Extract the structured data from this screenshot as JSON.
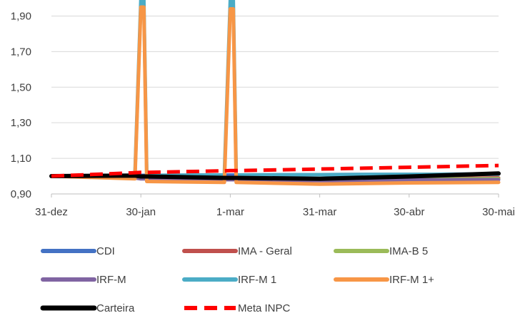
{
  "chart_data": {
    "type": "line",
    "title": "",
    "xlabel": "",
    "ylabel": "",
    "x_ticks": [
      "31-dez",
      "30-jan",
      "1-mar",
      "31-mar",
      "30-abr",
      "30-mai"
    ],
    "y_ticks": [
      "0,90",
      "1,10",
      "1,30",
      "1,50",
      "1,70",
      "1,90"
    ],
    "ylim": [
      0.9,
      1.99
    ],
    "grid": "horizontal",
    "legend_position": "bottom",
    "x_points": [
      0,
      28,
      30,
      31,
      32,
      58,
      60,
      61,
      62,
      90,
      120,
      150
    ],
    "series": [
      {
        "name": "CDI",
        "color": "#4472C4",
        "width": 5,
        "dash": "",
        "values": [
          1.0,
          1.004,
          1.004,
          1.004,
          1.004,
          1.006,
          1.006,
          1.006,
          1.006,
          1.008,
          1.01,
          1.012
        ]
      },
      {
        "name": "IMA - Geral",
        "color": "#C0504D",
        "width": 5,
        "dash": "",
        "values": [
          1.0,
          0.995,
          0.99,
          0.99,
          0.99,
          0.985,
          0.985,
          0.985,
          0.985,
          0.982,
          0.985,
          0.99
        ]
      },
      {
        "name": "IMA-B 5",
        "color": "#9BBB59",
        "width": 5,
        "dash": "",
        "values": [
          1.0,
          0.993,
          0.99,
          0.99,
          0.99,
          0.984,
          0.984,
          0.984,
          0.984,
          0.978,
          0.982,
          0.986
        ]
      },
      {
        "name": "IRF-M",
        "color": "#8064A2",
        "width": 5,
        "dash": "",
        "values": [
          1.0,
          0.99,
          0.985,
          0.985,
          0.985,
          0.98,
          0.98,
          0.98,
          0.98,
          0.975,
          0.978,
          0.98
        ]
      },
      {
        "name": "IRF-M 1",
        "color": "#4BACC6",
        "width": 5,
        "dash": "",
        "values": [
          1.0,
          1.004,
          1.99,
          1.99,
          1.004,
          1.006,
          1.99,
          1.99,
          1.006,
          1.008,
          1.01,
          1.012
        ]
      },
      {
        "name": "IRF-M 1+",
        "color": "#F79646",
        "width": 5,
        "dash": "",
        "values": [
          1.0,
          0.985,
          1.95,
          1.95,
          0.97,
          0.965,
          1.94,
          1.94,
          0.965,
          0.955,
          0.962,
          0.965
        ]
      },
      {
        "name": "Carteira",
        "color": "#000000",
        "width": 6,
        "dash": "",
        "values": [
          1.0,
          1.003,
          0.998,
          0.998,
          0.998,
          0.99,
          0.99,
          0.99,
          0.99,
          0.985,
          0.998,
          1.015
        ]
      },
      {
        "name": "Meta INPC",
        "color": "#FF0000",
        "width": 5,
        "dash": "18 9",
        "values": [
          1.0,
          1.019,
          1.021,
          1.021,
          1.021,
          1.03,
          1.031,
          1.031,
          1.031,
          1.04,
          1.05,
          1.06
        ]
      }
    ]
  }
}
